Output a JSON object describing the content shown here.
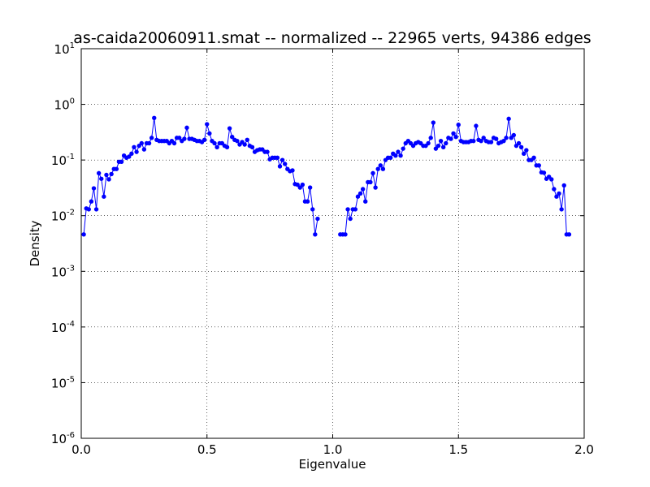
{
  "chart_data": {
    "type": "line",
    "title": "as-caida20060911.smat -- normalized -- 22965 verts, 94386 edges",
    "x_label": "Eigenvalue",
    "y_label": "Density",
    "log_y": true,
    "grid": true,
    "xlim": [
      0,
      2
    ],
    "ylim": [
      1e-06,
      10
    ],
    "xticks": [
      {
        "value": 0,
        "label": "0.0"
      },
      0.5,
      {
        "value": 1,
        "label": "1.0"
      },
      1.5,
      {
        "value": 2,
        "label": "2.0"
      }
    ],
    "yticks": [
      {
        "value": 1e-06,
        "label": "10",
        "exponent": "-6"
      },
      {
        "value": 1e-05,
        "label": "10",
        "exponent": "-5"
      },
      {
        "value": 0.0001,
        "label": "10",
        "exponent": "-4"
      },
      {
        "value": 0.001,
        "label": "10",
        "exponent": "-3"
      },
      {
        "value": 0.01,
        "label": "10",
        "exponent": "-2"
      },
      {
        "value": 0.1,
        "label": "10",
        "exponent": "-1"
      },
      {
        "value": 1,
        "label": "10",
        "exponent": "0"
      },
      {
        "value": 10,
        "label": "10",
        "exponent": "1"
      }
    ],
    "x": [
      0.01,
      0.02,
      0.03,
      0.04,
      0.05,
      0.06,
      0.07,
      0.08,
      0.09,
      0.1,
      0.11,
      0.12,
      0.13,
      0.14,
      0.15,
      0.16,
      0.17,
      0.18,
      0.19,
      0.2,
      0.21,
      0.22,
      0.23,
      0.24,
      0.25,
      0.26,
      0.27,
      0.28,
      0.29,
      0.3,
      0.31,
      0.32,
      0.33,
      0.34,
      0.35,
      0.36,
      0.37,
      0.38,
      0.39,
      0.4,
      0.41,
      0.42,
      0.43,
      0.44,
      0.45,
      0.46,
      0.47,
      0.48,
      0.49,
      0.5,
      0.51,
      0.52,
      0.53,
      0.54,
      0.55,
      0.56,
      0.57,
      0.58,
      0.59,
      0.6,
      0.61,
      0.62,
      0.63,
      0.64,
      0.65,
      0.66,
      0.67,
      0.68,
      0.69,
      0.7,
      0.71,
      0.72,
      0.73,
      0.74,
      0.75,
      0.76,
      0.77,
      0.78,
      0.79,
      0.8,
      0.81,
      0.82,
      0.83,
      0.84,
      0.85,
      0.86,
      0.87,
      0.88,
      0.89,
      0.9,
      0.91,
      0.92,
      0.93,
      0.94,
      0.985,
      1.03,
      1.04,
      1.05,
      1.06,
      1.07,
      1.08,
      1.09,
      1.1,
      1.11,
      1.12,
      1.13,
      1.14,
      1.15,
      1.16,
      1.17,
      1.18,
      1.19,
      1.2,
      1.21,
      1.22,
      1.23,
      1.24,
      1.25,
      1.26,
      1.27,
      1.28,
      1.29,
      1.3,
      1.31,
      1.32,
      1.33,
      1.34,
      1.35,
      1.36,
      1.37,
      1.38,
      1.39,
      1.4,
      1.41,
      1.42,
      1.43,
      1.44,
      1.45,
      1.46,
      1.47,
      1.48,
      1.49,
      1.5,
      1.51,
      1.52,
      1.53,
      1.54,
      1.55,
      1.56,
      1.57,
      1.58,
      1.59,
      1.6,
      1.61,
      1.62,
      1.63,
      1.64,
      1.65,
      1.66,
      1.67,
      1.68,
      1.69,
      1.7,
      1.71,
      1.72,
      1.73,
      1.74,
      1.75,
      1.76,
      1.77,
      1.78,
      1.79,
      1.8,
      1.81,
      1.82,
      1.83,
      1.84,
      1.85,
      1.86,
      1.87,
      1.88,
      1.89,
      1.9,
      1.91,
      1.92,
      1.93,
      1.94
    ],
    "series": [
      {
        "color": "#0000ff",
        "values": [
          0.0046,
          0.0135,
          0.013,
          0.018,
          0.031,
          0.013,
          0.058,
          0.046,
          0.022,
          0.054,
          0.045,
          0.056,
          0.069,
          0.069,
          0.093,
          0.093,
          0.12,
          0.11,
          0.115,
          0.13,
          0.17,
          0.14,
          0.18,
          0.2,
          0.155,
          0.2,
          0.2,
          0.25,
          0.57,
          0.23,
          0.22,
          0.22,
          0.22,
          0.22,
          0.2,
          0.22,
          0.2,
          0.25,
          0.25,
          0.22,
          0.24,
          0.38,
          0.24,
          0.24,
          0.23,
          0.22,
          0.22,
          0.21,
          0.23,
          0.44,
          0.3,
          0.22,
          0.2,
          0.17,
          0.2,
          0.2,
          0.18,
          0.17,
          0.37,
          0.26,
          0.23,
          0.22,
          0.19,
          0.21,
          0.19,
          0.23,
          0.18,
          0.17,
          0.14,
          0.15,
          0.155,
          0.155,
          0.14,
          0.14,
          0.103,
          0.11,
          0.11,
          0.11,
          0.077,
          0.1,
          0.085,
          0.069,
          0.063,
          0.065,
          0.037,
          0.036,
          0.032,
          0.036,
          0.018,
          0.018,
          0.032,
          0.013,
          0.0046,
          0.0088,
          null,
          0.0046,
          0.0046,
          0.0046,
          0.013,
          0.0088,
          0.013,
          0.013,
          0.022,
          0.025,
          0.03,
          0.018,
          0.04,
          0.04,
          0.058,
          0.032,
          0.069,
          0.08,
          0.069,
          0.1,
          0.11,
          0.11,
          0.13,
          0.12,
          0.14,
          0.12,
          0.16,
          0.2,
          0.22,
          0.2,
          0.18,
          0.2,
          0.21,
          0.2,
          0.18,
          0.18,
          0.2,
          0.25,
          0.47,
          0.16,
          0.18,
          0.22,
          0.17,
          0.2,
          0.25,
          0.24,
          0.3,
          0.26,
          0.43,
          0.22,
          0.21,
          0.21,
          0.21,
          0.22,
          0.22,
          0.41,
          0.23,
          0.22,
          0.25,
          0.22,
          0.21,
          0.21,
          0.25,
          0.24,
          0.2,
          0.21,
          0.22,
          0.25,
          0.55,
          0.25,
          0.28,
          0.18,
          0.2,
          0.17,
          0.13,
          0.15,
          0.1,
          0.1,
          0.11,
          0.08,
          0.08,
          0.06,
          0.059,
          0.046,
          0.05,
          0.045,
          0.03,
          0.022,
          0.025,
          0.013,
          0.035,
          0.0046,
          0.0046
        ]
      }
    ]
  }
}
